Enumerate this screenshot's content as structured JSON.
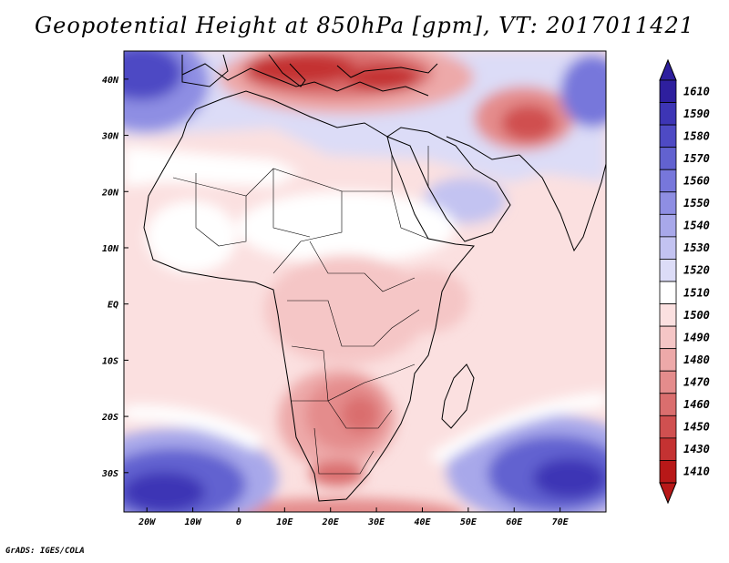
{
  "title": "Geopotential Height at 850hPa [gpm], VT: 2017011421",
  "credit": "GrADS: IGES/COLA",
  "map": {
    "lon_range": [
      -25,
      80
    ],
    "lat_range": [
      -37,
      45
    ],
    "lon_ticks": [
      "20W",
      "10W",
      "0",
      "10E",
      "20E",
      "30E",
      "40E",
      "50E",
      "60E",
      "70E"
    ],
    "lat_ticks": [
      "40N",
      "30N",
      "20N",
      "10N",
      "EQ",
      "10S",
      "20S",
      "30S"
    ],
    "coastlines": true,
    "country_borders": true
  },
  "colorbar": {
    "levels": [
      "1610",
      "1590",
      "1580",
      "1570",
      "1560",
      "1550",
      "1540",
      "1530",
      "1520",
      "1510",
      "1500",
      "1490",
      "1480",
      "1470",
      "1460",
      "1450",
      "1430",
      "1410"
    ],
    "colors": [
      "#2e1f9e",
      "#3d35b5",
      "#4e4ac4",
      "#6262d0",
      "#7777db",
      "#8e8ee3",
      "#a8a8ea",
      "#c3c3f1",
      "#dcdcf7",
      "#ffffff",
      "#fbe0e0",
      "#f5c6c6",
      "#eda9a9",
      "#e48c8c",
      "#da6e6e",
      "#d05050",
      "#c43232",
      "#b81818"
    ]
  }
}
